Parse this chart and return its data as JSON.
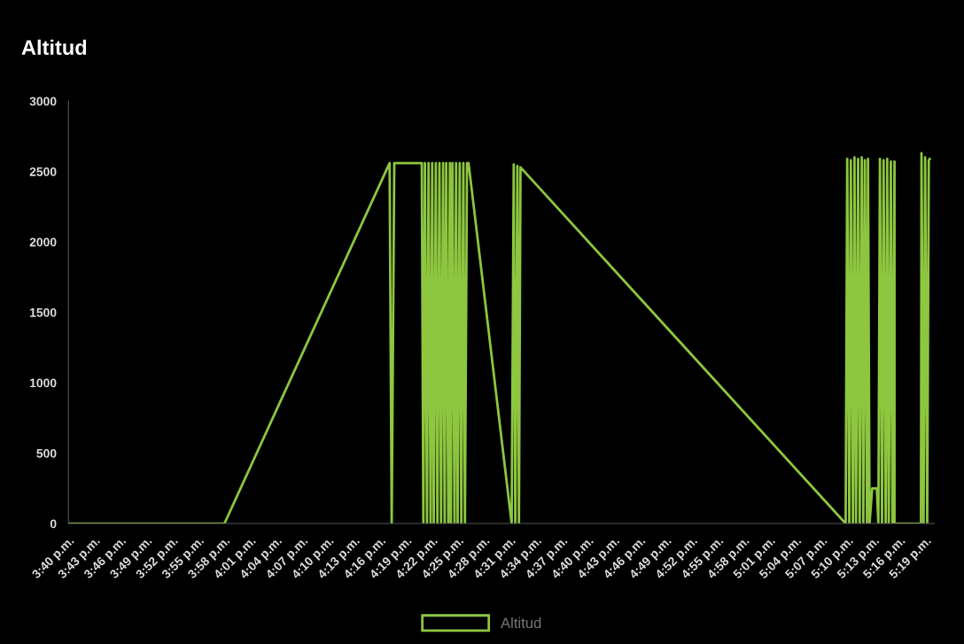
{
  "chart_data": {
    "type": "line",
    "title": "Altitud",
    "xlim": [
      15.6667,
      17.3333
    ],
    "xticks": [
      {
        "value": 15.6667,
        "label": "3:40 p.m."
      },
      {
        "value": 15.7167,
        "label": "3:43 p.m."
      },
      {
        "value": 15.7667,
        "label": "3:46 p.m."
      },
      {
        "value": 15.8167,
        "label": "3:49 p.m."
      },
      {
        "value": 15.8667,
        "label": "3:52 p.m."
      },
      {
        "value": 15.9167,
        "label": "3:55 p.m."
      },
      {
        "value": 15.9667,
        "label": "3:58 p.m."
      },
      {
        "value": 16.0167,
        "label": "4:01 p.m."
      },
      {
        "value": 16.0667,
        "label": "4:04 p.m."
      },
      {
        "value": 16.1167,
        "label": "4:07 p.m."
      },
      {
        "value": 16.1667,
        "label": "4:10 p.m."
      },
      {
        "value": 16.2167,
        "label": "4:13 p.m."
      },
      {
        "value": 16.2667,
        "label": "4:16 p.m."
      },
      {
        "value": 16.3167,
        "label": "4:19 p.m."
      },
      {
        "value": 16.3667,
        "label": "4:22 p.m."
      },
      {
        "value": 16.4167,
        "label": "4:25 p.m."
      },
      {
        "value": 16.4667,
        "label": "4:28 p.m."
      },
      {
        "value": 16.5167,
        "label": "4:31 p.m."
      },
      {
        "value": 16.5667,
        "label": "4:34 p.m."
      },
      {
        "value": 16.6167,
        "label": "4:37 p.m."
      },
      {
        "value": 16.6667,
        "label": "4:40 p.m."
      },
      {
        "value": 16.7167,
        "label": "4:43 p.m."
      },
      {
        "value": 16.7667,
        "label": "4:46 p.m."
      },
      {
        "value": 16.8167,
        "label": "4:49 p.m."
      },
      {
        "value": 16.8667,
        "label": "4:52 p.m."
      },
      {
        "value": 16.9167,
        "label": "4:55 p.m."
      },
      {
        "value": 16.9667,
        "label": "4:58 p.m."
      },
      {
        "value": 17.0167,
        "label": "5:01 p.m."
      },
      {
        "value": 17.0667,
        "label": "5:04 p.m."
      },
      {
        "value": 17.1167,
        "label": "5:07 p.m."
      },
      {
        "value": 17.1667,
        "label": "5:10 p.m."
      },
      {
        "value": 17.2167,
        "label": "5:13 p.m."
      },
      {
        "value": 17.2667,
        "label": "5:16 p.m."
      },
      {
        "value": 17.3167,
        "label": "5:19 p.m."
      }
    ],
    "ylim": [
      0,
      3000
    ],
    "yticks": [
      0,
      500,
      1000,
      1500,
      2000,
      2500,
      3000
    ],
    "grid": false,
    "legend": "bottom",
    "marker": "none",
    "line_style": "solid",
    "series": [
      {
        "name": "Altitud",
        "color": "#8dc63f",
        "x": [
          15.667,
          15.967,
          16.285,
          16.289,
          16.294,
          16.347,
          16.35,
          16.353,
          16.357,
          16.36,
          16.364,
          16.367,
          16.37,
          16.374,
          16.377,
          16.381,
          16.384,
          16.388,
          16.391,
          16.394,
          16.398,
          16.401,
          16.403,
          16.406,
          16.41,
          16.413,
          16.416,
          16.42,
          16.423,
          16.427,
          16.43,
          16.434,
          16.437,
          16.52,
          16.524,
          16.527,
          16.531,
          16.534,
          16.537,
          17.163,
          17.166,
          17.17,
          17.173,
          17.177,
          17.18,
          17.183,
          17.187,
          17.19,
          17.194,
          17.197,
          17.2,
          17.204,
          17.206,
          17.209,
          17.214,
          17.223,
          17.226,
          17.229,
          17.233,
          17.236,
          17.24,
          17.243,
          17.246,
          17.25,
          17.253,
          17.257,
          17.257,
          17.308,
          17.309,
          17.313,
          17.316,
          17.32,
          17.323,
          17.325
        ],
        "values": [
          0,
          0,
          2560,
          0,
          2560,
          2560,
          0,
          2560,
          0,
          2560,
          0,
          2560,
          0,
          2560,
          0,
          2560,
          0,
          2560,
          0,
          2560,
          0,
          2560,
          0,
          2560,
          0,
          2560,
          0,
          2560,
          0,
          2560,
          0,
          2560,
          2560,
          0,
          2550,
          0,
          2540,
          0,
          2530,
          0,
          2590,
          0,
          2580,
          0,
          2600,
          0,
          2590,
          0,
          2600,
          0,
          2580,
          0,
          2590,
          0,
          250,
          250,
          0,
          2590,
          0,
          2580,
          0,
          2590,
          0,
          2570,
          0,
          2570,
          0,
          0,
          2630,
          0,
          2600,
          0,
          2580,
          2590
        ]
      }
    ]
  }
}
